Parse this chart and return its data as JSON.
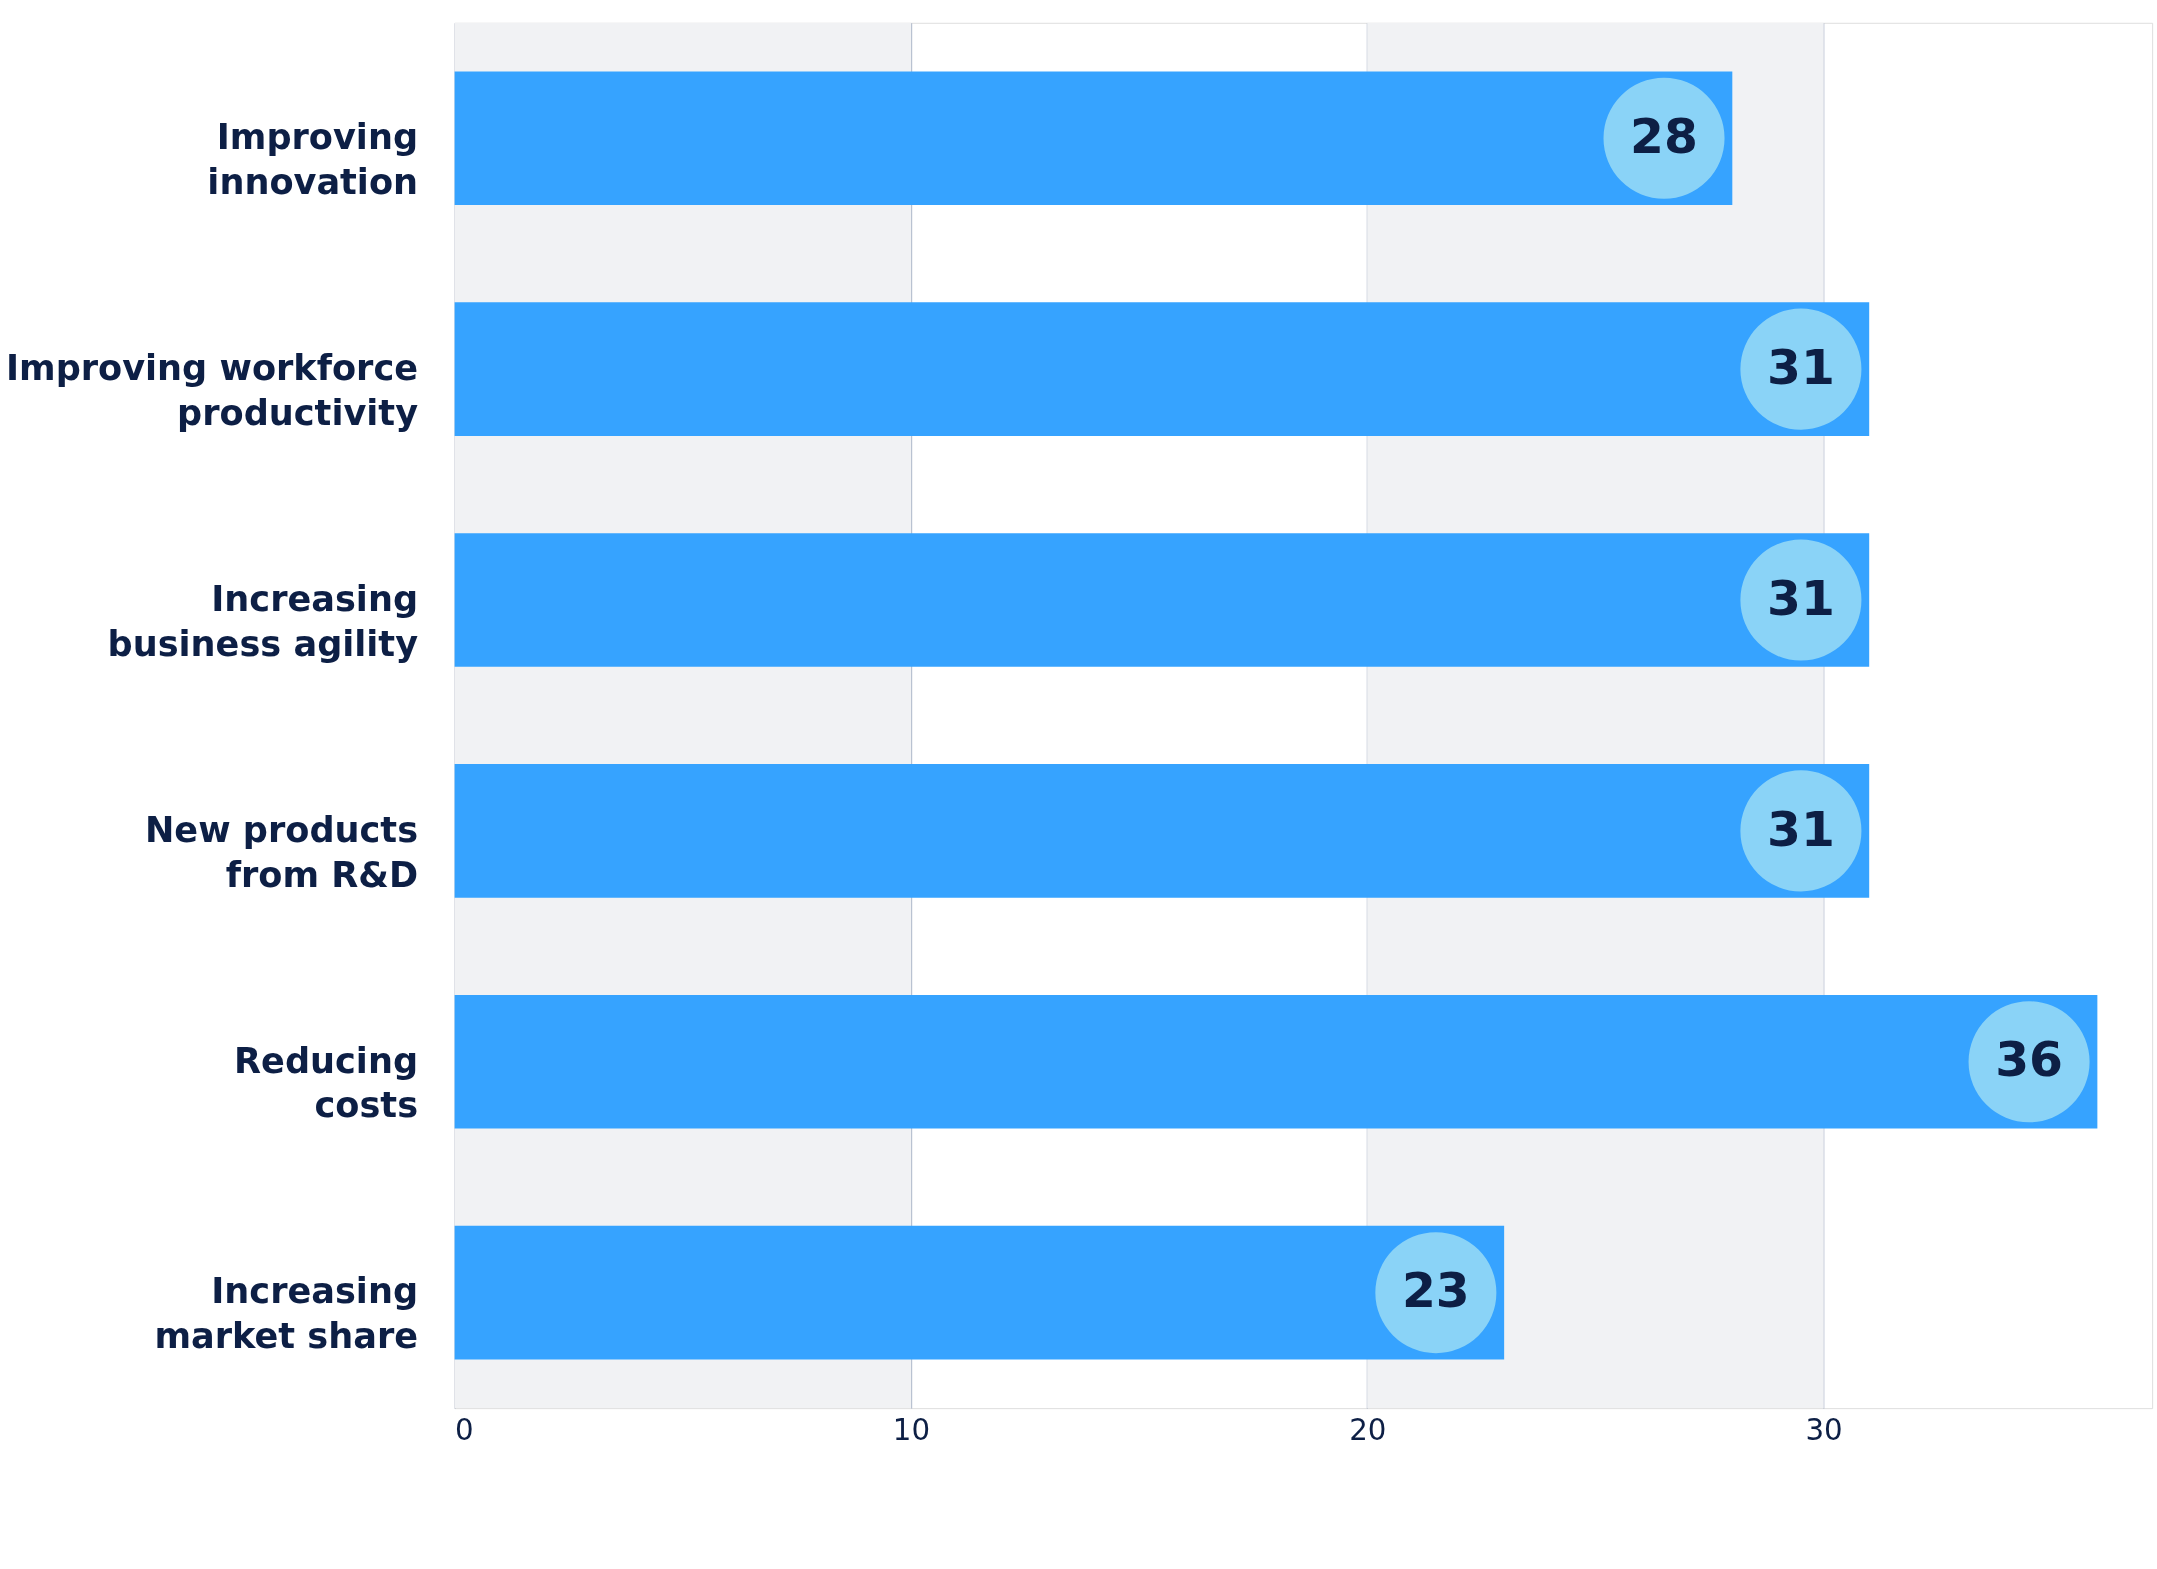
{
  "chart_data": {
    "type": "bar",
    "orientation": "horizontal",
    "categories": [
      "Improving innovation",
      "Improving workforce productivity",
      "Increasing business agility",
      "New products from R&D",
      "Reducing costs",
      "Increasing market share"
    ],
    "values": [
      28,
      31,
      31,
      31,
      36,
      23
    ],
    "color": "#36a3ff",
    "data_labels": true,
    "xlim": [
      0,
      37.2
    ],
    "xticks": [
      0,
      10,
      20,
      30
    ],
    "grid": "x",
    "bands": [
      {
        "axis": "x",
        "from": 0,
        "to": 10,
        "color": "#f1f2f4"
      },
      {
        "axis": "x",
        "from": 20,
        "to": 30,
        "color": "#f1f2f4"
      }
    ]
  }
}
